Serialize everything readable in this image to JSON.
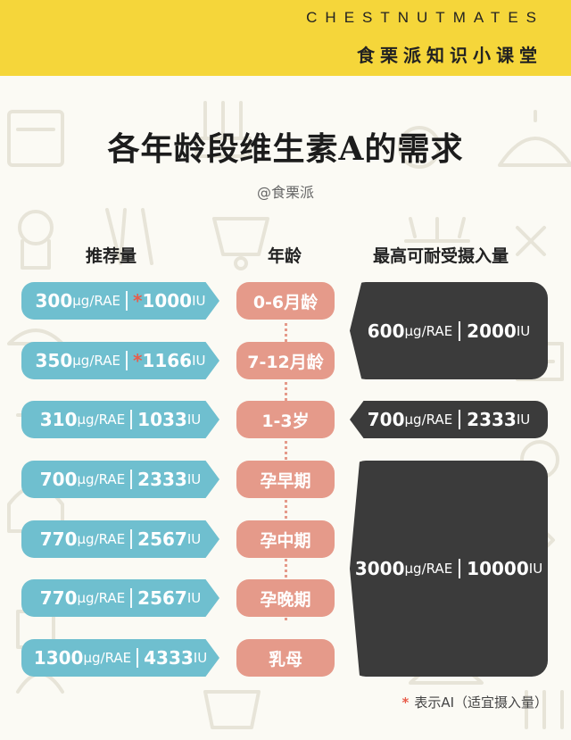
{
  "header": {
    "brand": "CHESTNUTMATES",
    "subtitle": "食栗派知识小课堂"
  },
  "page": {
    "title": "各年龄段维生素A的需求",
    "handle": "@食栗派"
  },
  "columns": {
    "recommended": "推荐量",
    "age": "年龄",
    "upper_limit": "最高可耐受摄入量"
  },
  "units": {
    "ug": "μg/RAE",
    "iu": "IU"
  },
  "rows": [
    {
      "age": "0-6月龄",
      "ug": "300",
      "iu": "1000",
      "star": "*"
    },
    {
      "age": "7-12月龄",
      "ug": "350",
      "iu": "1166",
      "star": "*"
    },
    {
      "age": "1-3岁",
      "ug": "310",
      "iu": "1033",
      "star": ""
    },
    {
      "age": "孕早期",
      "ug": "700",
      "iu": "2333",
      "star": ""
    },
    {
      "age": "孕中期",
      "ug": "770",
      "iu": "2567",
      "star": ""
    },
    {
      "age": "孕晚期",
      "ug": "770",
      "iu": "2567",
      "star": ""
    },
    {
      "age": "乳母",
      "ug": "1300",
      "iu": "4333",
      "star": ""
    }
  ],
  "limits": [
    {
      "ug": "600",
      "iu": "2000"
    },
    {
      "ug": "700",
      "iu": "2333"
    },
    {
      "ug": "3000",
      "iu": "10000"
    }
  ],
  "footnote": {
    "star": "*",
    "text": "表示AI（适宜摄入量）"
  },
  "colors": {
    "header_bg": "#f5d63a",
    "recommended_pill": "#6fbfcf",
    "age_pill": "#e59a8a",
    "limit_box": "#3b3b3b",
    "star": "#e85c4a"
  }
}
